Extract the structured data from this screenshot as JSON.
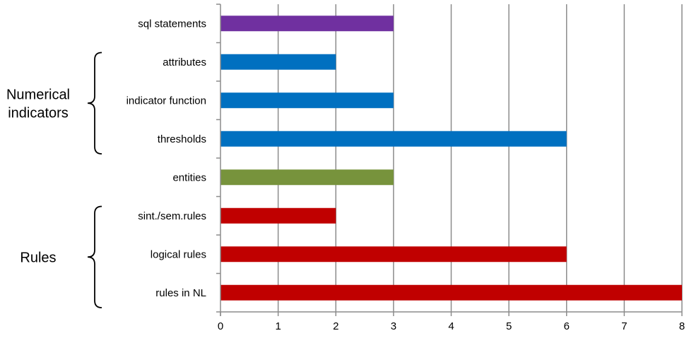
{
  "chart_data": {
    "type": "bar",
    "orientation": "horizontal",
    "categories": [
      "rules in NL",
      "logical rules",
      "sint./sem.rules",
      "entities",
      "thresholds",
      "indicator function",
      "attributes",
      "sql statements"
    ],
    "values": [
      8,
      6,
      2,
      3,
      6,
      3,
      2,
      3
    ],
    "bar_colors": [
      "#C00000",
      "#C00000",
      "#C00000",
      "#77933C",
      "#0070C0",
      "#0070C0",
      "#0070C0",
      "#7030A0"
    ],
    "xlim": [
      0,
      8
    ],
    "xticks": [
      "0",
      "1",
      "2",
      "3",
      "4",
      "5",
      "6",
      "7",
      "8"
    ],
    "grid": true,
    "groups": [
      {
        "label_lines": [
          "Rules"
        ],
        "categories": [
          "rules in NL",
          "logical rules",
          "sint./sem.rules"
        ]
      },
      {
        "label_lines": [
          "Numerical",
          "indicators"
        ],
        "categories": [
          "thresholds",
          "indicator function",
          "attributes"
        ]
      }
    ]
  }
}
